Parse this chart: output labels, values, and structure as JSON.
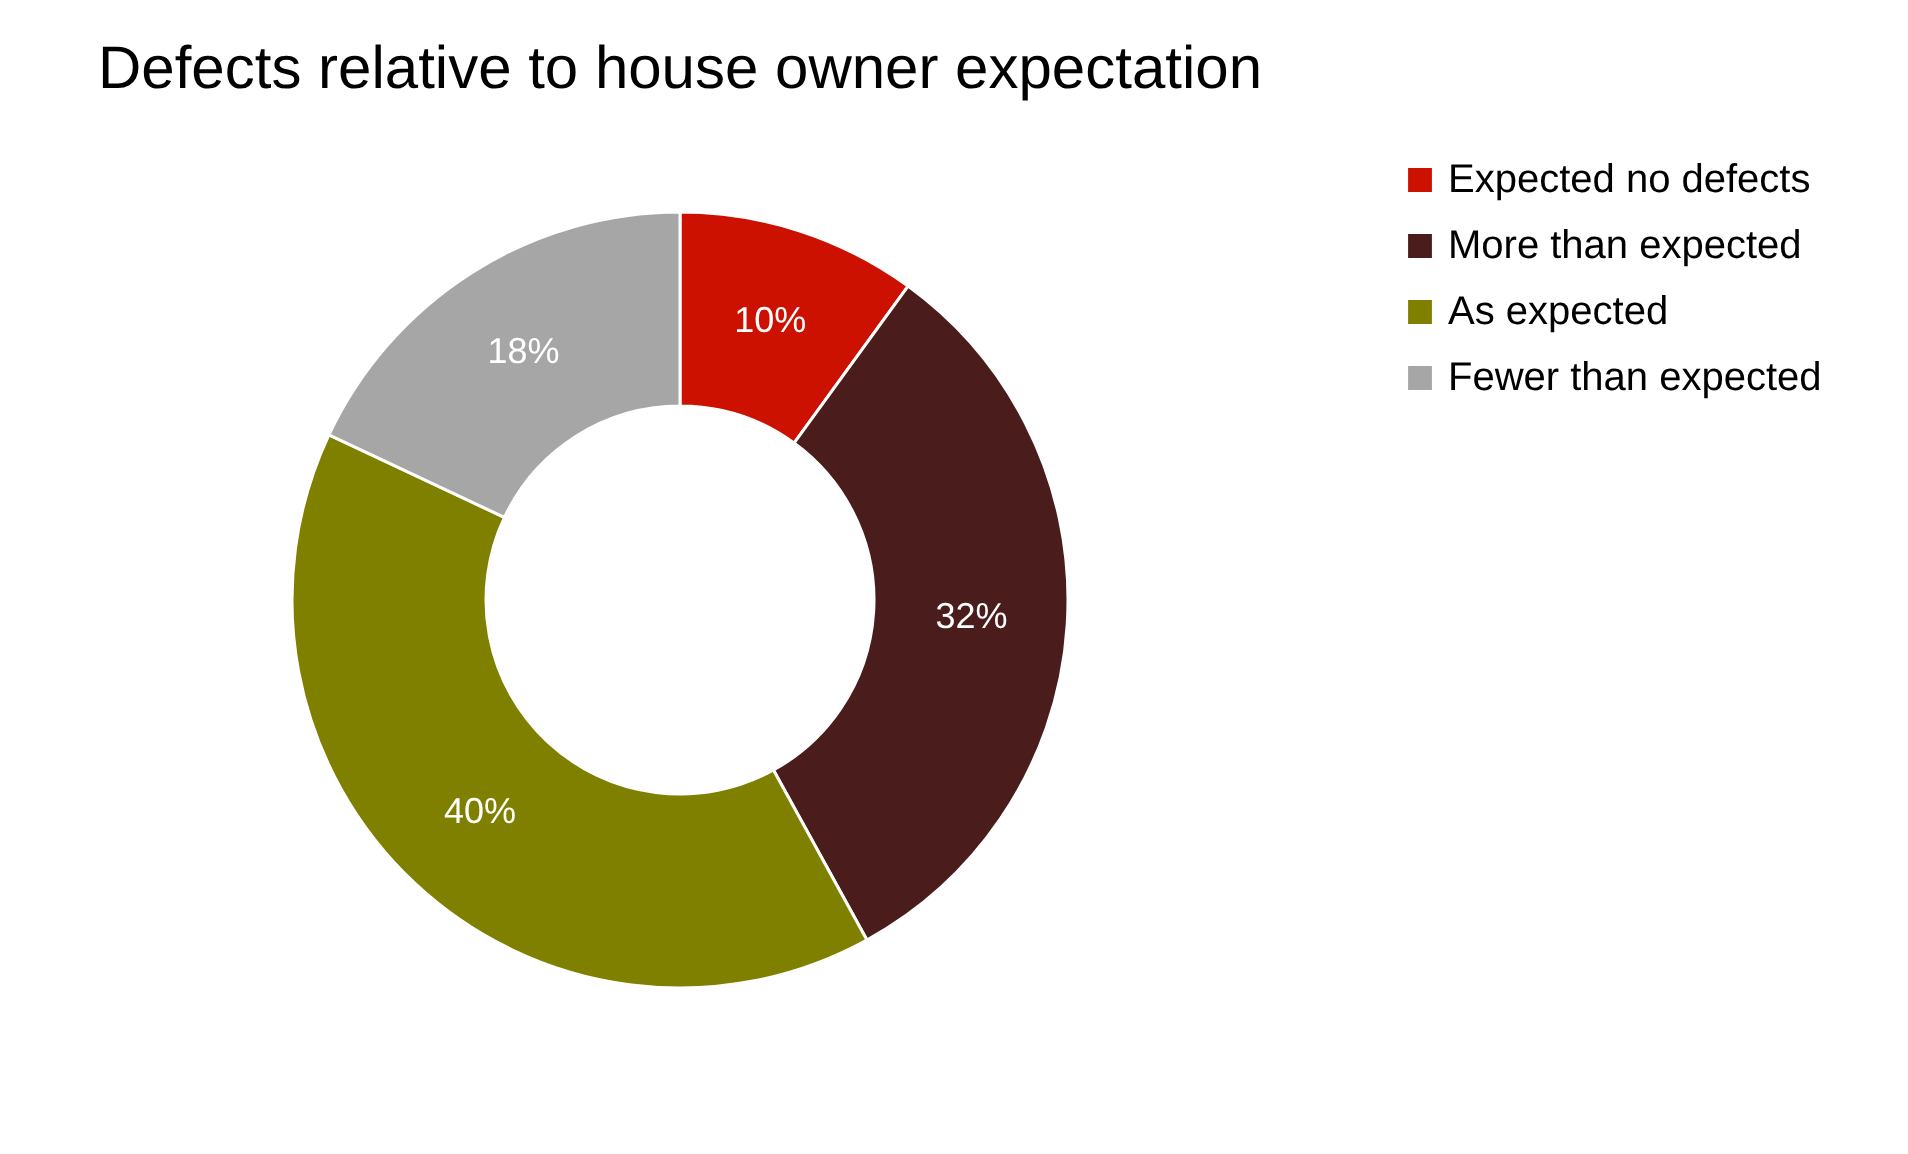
{
  "chart_data": {
    "type": "donut",
    "title": "Defects relative to house owner expectation",
    "categories": [
      "Expected no defects",
      "More than expected",
      "As expected",
      "Fewer than expected"
    ],
    "values": [
      10,
      32,
      40,
      18
    ],
    "colors": [
      "#cc1100",
      "#4a1c1c",
      "#808000",
      "#a6a6a6"
    ],
    "value_labels": [
      "10%",
      "32%",
      "40%",
      "18%"
    ],
    "legend": "right"
  }
}
